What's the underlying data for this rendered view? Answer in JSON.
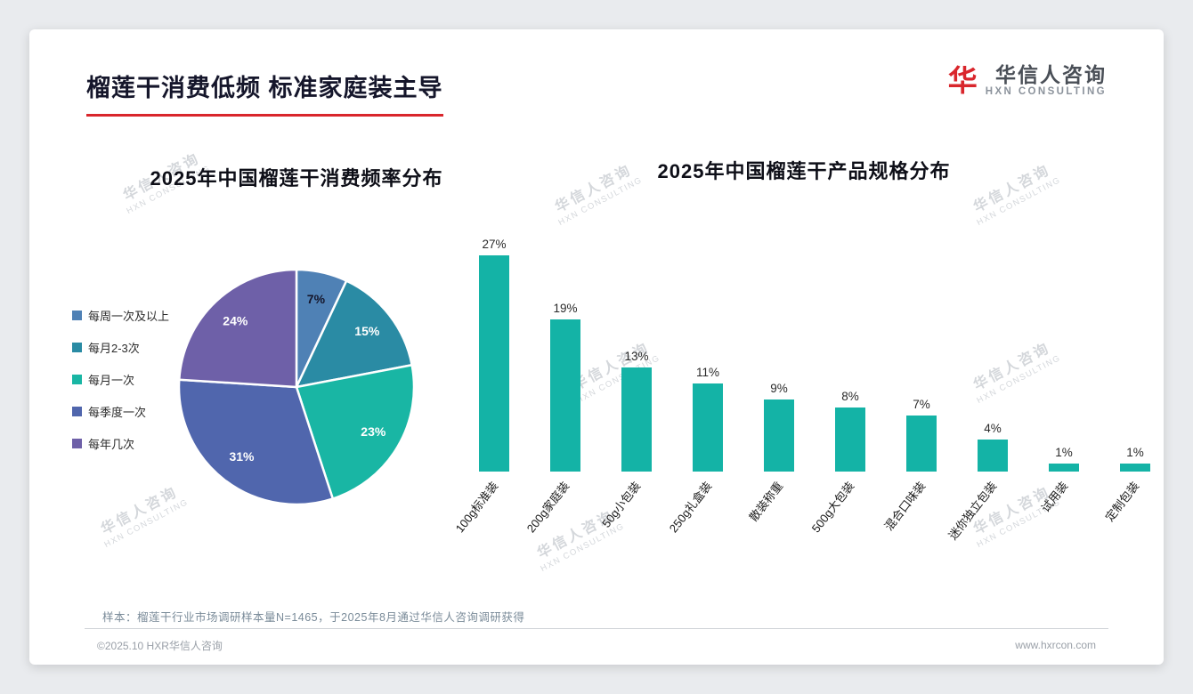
{
  "page": {
    "title": "榴莲干消费低频 标准家庭装主导",
    "accent_color": "#d9262c"
  },
  "logo": {
    "icon_glyph": "华",
    "name": "华信人咨询",
    "subtitle": "HXN CONSULTING"
  },
  "watermark": {
    "line1": "华信人咨询",
    "line2": "HXN CONSULTING"
  },
  "footer": {
    "note": "样本：榴莲干行业市场调研样本量N=1465，于2025年8月通过华信人咨询调研获得",
    "copyright": "©2025.10 HXR华信人咨询",
    "website": "www.hxrcon.com"
  },
  "chart_data": [
    {
      "type": "pie",
      "title": "2025年中国榴莲干消费频率分布",
      "labels": [
        "每周一次及以上",
        "每月2-3次",
        "每月一次",
        "每季度一次",
        "每年几次"
      ],
      "values": [
        7,
        15,
        23,
        31,
        24
      ],
      "unit": "%",
      "colors": [
        "#4f81b5",
        "#2a8ba4",
        "#19b6a4",
        "#5066ad",
        "#6e60a8"
      ],
      "value_label_colors": [
        "#15162b",
        "#ffffff",
        "#ffffff",
        "#ffffff",
        "#ffffff"
      ],
      "legend_position": "left",
      "start_angle_deg": 0
    },
    {
      "type": "bar",
      "title": "2025年中国榴莲干产品规格分布",
      "categories": [
        "100g标准装",
        "200g家庭装",
        "50g小包装",
        "250g礼盒装",
        "散装称重",
        "500g大包装",
        "混合口味装",
        "迷你独立包装",
        "试用装",
        "定制包装"
      ],
      "values": [
        27,
        19,
        13,
        11,
        9,
        8,
        7,
        4,
        1,
        1
      ],
      "unit": "%",
      "bar_color": "#14b3a6",
      "ylim": [
        0,
        30
      ],
      "grid": false,
      "value_labels": true,
      "category_label_rotation_deg": -52
    }
  ]
}
